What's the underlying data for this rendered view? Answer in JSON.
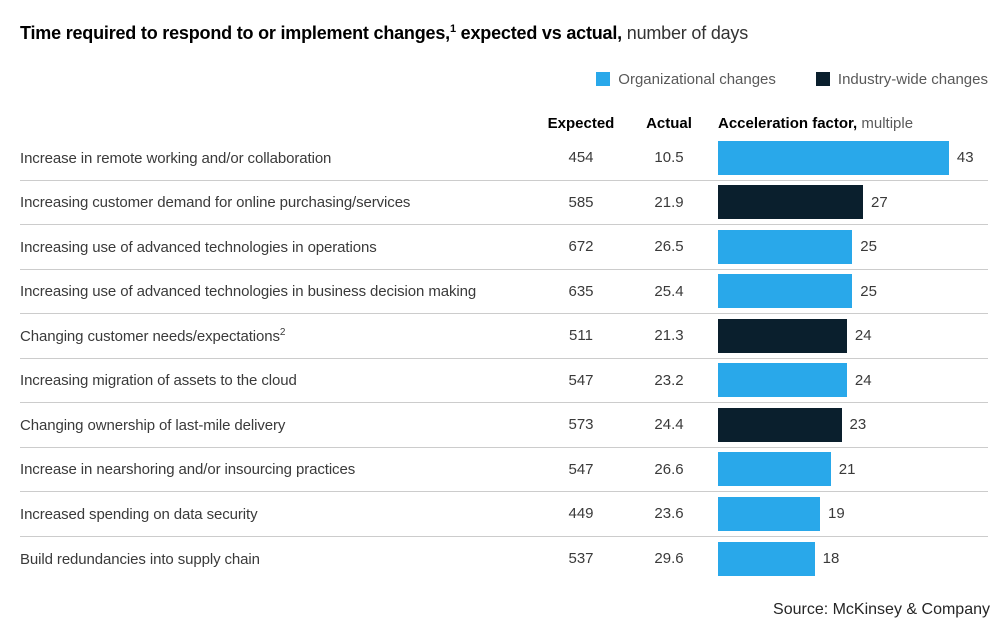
{
  "title": {
    "bold_part1": "Time required to respond to or implement changes,",
    "sup": "1",
    "bold_part2": " expected vs actual,",
    "unit": " number of days"
  },
  "legend": [
    {
      "label": "Organizational changes",
      "color": "#29A8EA"
    },
    {
      "label": "Industry-wide changes",
      "color": "#0A1F2D"
    }
  ],
  "columns": {
    "expected": "Expected",
    "actual": "Actual",
    "accel_bold": "Acceleration factor,",
    "accel_regular": " multiple"
  },
  "colors": {
    "organizational": "#29A8EA",
    "industry": "#0A1F2D"
  },
  "rows": [
    {
      "label": "Increase in remote working and/or collaboration",
      "expected": 454,
      "actual": 10.5,
      "factor": 43,
      "group": "organizational"
    },
    {
      "label": "Increasing customer demand for online purchasing/services",
      "expected": 585,
      "actual": 21.9,
      "factor": 27,
      "group": "industry"
    },
    {
      "label": "Increasing use of advanced technologies in operations",
      "expected": 672,
      "actual": 26.5,
      "factor": 25,
      "group": "organizational"
    },
    {
      "label": "Increasing use of advanced technologies in business decision making",
      "expected": 635,
      "actual": 25.4,
      "factor": 25,
      "group": "organizational"
    },
    {
      "label": "Changing customer needs/expectations",
      "sup": "2",
      "expected": 511,
      "actual": 21.3,
      "factor": 24,
      "group": "industry"
    },
    {
      "label": "Increasing migration of assets to the cloud",
      "expected": 547,
      "actual": 23.2,
      "factor": 24,
      "group": "organizational"
    },
    {
      "label": "Changing ownership of last-mile delivery",
      "expected": 573,
      "actual": 24.4,
      "factor": 23,
      "group": "industry"
    },
    {
      "label": "Increase in nearshoring and/or insourcing practices",
      "expected": 547,
      "actual": 26.6,
      "factor": 21,
      "group": "organizational"
    },
    {
      "label": "Increased spending on data security",
      "expected": 449,
      "actual": 23.6,
      "factor": 19,
      "group": "organizational"
    },
    {
      "label": "Build redundancies into supply chain",
      "expected": 537,
      "actual": 29.6,
      "factor": 18,
      "group": "organizational"
    }
  ],
  "source": "Source: McKinsey & Company",
  "chart_data": {
    "type": "bar",
    "orientation": "horizontal",
    "title": "Time required to respond to or implement changes, expected vs actual",
    "subtitle_unit": "number of days",
    "categories": [
      "Increase in remote working and/or collaboration",
      "Increasing customer demand for online purchasing/services",
      "Increasing use of advanced technologies in operations",
      "Increasing use of advanced technologies in business decision making",
      "Changing customer needs/expectations",
      "Increasing migration of assets to the cloud",
      "Changing ownership of last-mile delivery",
      "Increase in nearshoring and/or insourcing practices",
      "Increased spending on data security",
      "Build redundancies into supply chain"
    ],
    "series": [
      {
        "name": "Expected (days)",
        "values": [
          454,
          585,
          672,
          635,
          511,
          547,
          573,
          547,
          449,
          537
        ]
      },
      {
        "name": "Actual (days)",
        "values": [
          10.5,
          21.9,
          26.5,
          25.4,
          21.3,
          23.2,
          24.4,
          26.6,
          23.6,
          29.6
        ]
      },
      {
        "name": "Acceleration factor (multiple)",
        "values": [
          43,
          27,
          25,
          25,
          24,
          24,
          23,
          21,
          19,
          18
        ]
      }
    ],
    "bar_series_shown_as_bars": "Acceleration factor (multiple)",
    "groups": [
      "organizational",
      "industry-wide",
      "organizational",
      "organizational",
      "industry-wide",
      "organizational",
      "industry-wide",
      "organizational",
      "organizational",
      "organizational"
    ],
    "legend": [
      "Organizational changes",
      "Industry-wide changes"
    ],
    "legend_position": "top-right",
    "xlim": [
      0,
      45
    ],
    "grid": false
  }
}
